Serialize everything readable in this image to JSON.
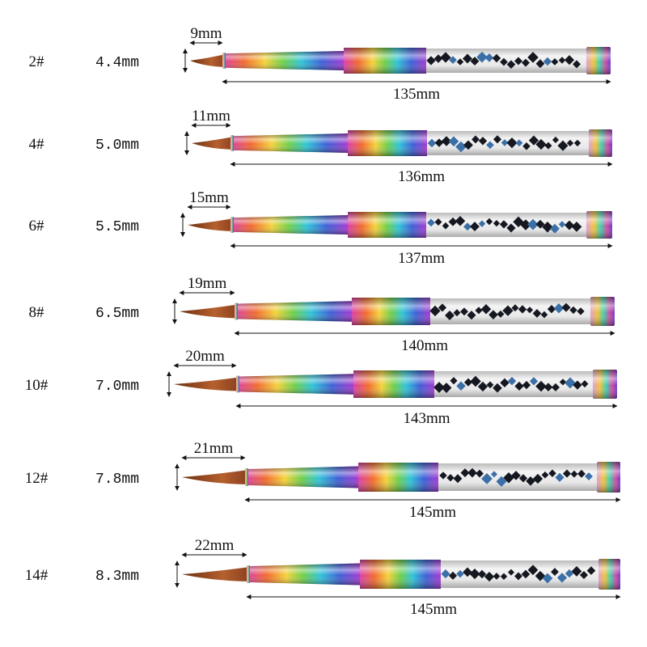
{
  "brushes": [
    {
      "size": "2#",
      "diameter": "4.4mm",
      "tip_length": "9mm",
      "total_length": "135mm"
    },
    {
      "size": "4#",
      "diameter": "5.0mm",
      "tip_length": "11mm",
      "total_length": "136mm"
    },
    {
      "size": "6#",
      "diameter": "5.5mm",
      "tip_length": "15mm",
      "total_length": "137mm"
    },
    {
      "size": "8#",
      "diameter": "6.5mm",
      "tip_length": "19mm",
      "total_length": "140mm"
    },
    {
      "size": "10#",
      "diameter": "7.0mm",
      "tip_length": "20mm",
      "total_length": "143mm"
    },
    {
      "size": "12#",
      "diameter": "7.8mm",
      "tip_length": "21mm",
      "total_length": "145mm"
    },
    {
      "size": "14#",
      "diameter": "8.3mm",
      "tip_length": "22mm",
      "total_length": "145mm"
    }
  ]
}
